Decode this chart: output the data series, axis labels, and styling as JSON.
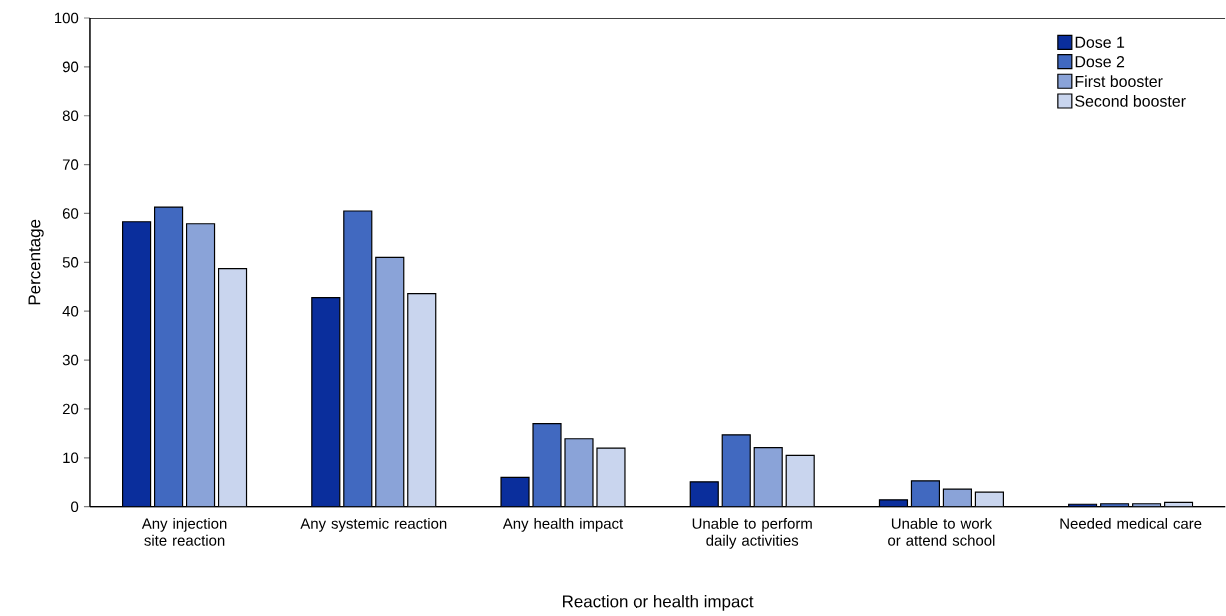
{
  "chart_data": {
    "type": "bar",
    "xlabel": "Reaction or health impact",
    "ylabel": "Percentage",
    "categories": [
      "Any injection site reaction",
      "Any systemic reaction",
      "Any health impact",
      "Unable to perform daily activities",
      "Unable to work or attend school",
      "Needed medical care"
    ],
    "series": [
      {
        "name": "Dose 1",
        "color": "#0a2e9c",
        "values": [
          58.3,
          42.8,
          6.0,
          5.1,
          1.4,
          0.5
        ]
      },
      {
        "name": "Dose 2",
        "color": "#4169c0",
        "values": [
          61.3,
          60.5,
          17.0,
          14.7,
          5.3,
          0.6
        ]
      },
      {
        "name": "First booster",
        "color": "#8aa3d8",
        "values": [
          57.9,
          51.0,
          13.9,
          12.1,
          3.6,
          0.6
        ]
      },
      {
        "name": "Second booster",
        "color": "#c9d5ee",
        "values": [
          48.7,
          43.6,
          12.0,
          10.5,
          3.0,
          0.9
        ]
      }
    ],
    "ylim": [
      0,
      100
    ],
    "yticks": [
      0,
      10,
      20,
      30,
      40,
      50,
      60,
      70,
      80,
      90,
      100
    ],
    "grid": false,
    "legend": "top right"
  }
}
